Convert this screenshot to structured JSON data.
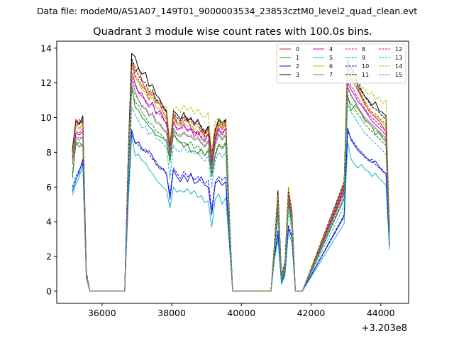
{
  "file_label": "Data file: modeM0/AS1A07_149T01_9000003534_23853cztM0_level2_quad_clean.evt",
  "chart_data": {
    "type": "line",
    "title": "Quadrant 3 module wise count rates with 100.0s bins.",
    "xlabel": "",
    "ylabel": "",
    "x_offset_label": "+3.203e8",
    "xlim": [
      34700,
      44800
    ],
    "ylim": [
      -0.7,
      14.4
    ],
    "xticks": [
      36000,
      38000,
      40000,
      42000,
      44000
    ],
    "xtick_labels": [
      "36000",
      "38000",
      "40000",
      "42000",
      "44000"
    ],
    "yticks": [
      0,
      2,
      4,
      6,
      8,
      10,
      12,
      14
    ],
    "ytick_labels": [
      "0",
      "2",
      "4",
      "6",
      "8",
      "10",
      "12",
      "14"
    ],
    "legend_position": "top-right",
    "x": [
      35150,
      35250,
      35350,
      35450,
      35550,
      35650,
      36650,
      36750,
      36850,
      36950,
      37050,
      37150,
      37250,
      37350,
      37450,
      37550,
      37650,
      37750,
      37850,
      37950,
      38050,
      38150,
      38250,
      38350,
      38450,
      38550,
      38650,
      38750,
      38850,
      38950,
      39050,
      39150,
      39250,
      39350,
      39450,
      39550,
      39650,
      39750,
      40850,
      40950,
      41050,
      41150,
      41250,
      41350,
      41450,
      41550,
      41650,
      41750,
      42950,
      43050,
      43150,
      43250,
      43350,
      43450,
      43550,
      43650,
      43750,
      43850,
      43950,
      44050,
      44150,
      44250
    ],
    "series": [
      {
        "name": "0",
        "color": "#d62020",
        "style": "solid",
        "values": [
          8.0,
          9.9,
          9.7,
          9.8,
          1.0,
          0.0,
          0.0,
          7.5,
          13.3,
          12.6,
          12.9,
          12.1,
          11.6,
          11.3,
          11.5,
          11.0,
          10.8,
          10.3,
          10.0,
          8.2,
          10.1,
          9.7,
          9.6,
          9.8,
          10.0,
          9.4,
          9.2,
          9.0,
          9.3,
          8.9,
          9.0,
          7.8,
          8.8,
          9.6,
          9.3,
          9.6,
          4.4,
          0.0,
          0.0,
          2.5,
          5.2,
          0.8,
          1.5,
          5.6,
          4.3,
          0.0,
          0.0,
          0.0,
          6.0,
          12.6,
          12.2,
          11.9,
          11.6,
          11.2,
          10.8,
          10.4,
          10.2,
          10.0,
          9.8,
          9.5,
          9.2,
          3.6
        ]
      },
      {
        "name": "1",
        "color": "#1e8a1e",
        "style": "solid",
        "values": [
          6.5,
          8.6,
          8.3,
          8.5,
          0.9,
          0.0,
          0.0,
          6.2,
          11.9,
          10.6,
          10.4,
          10.0,
          9.8,
          9.5,
          9.3,
          9.0,
          8.9,
          8.8,
          8.6,
          7.5,
          9.2,
          8.7,
          8.6,
          8.3,
          8.5,
          8.0,
          8.1,
          7.9,
          8.2,
          7.8,
          8.1,
          6.6,
          7.8,
          8.4,
          8.2,
          8.5,
          3.8,
          0.0,
          0.0,
          2.3,
          4.6,
          0.6,
          1.3,
          5.0,
          3.8,
          0.0,
          0.0,
          0.0,
          5.3,
          11.3,
          10.4,
          10.7,
          10.5,
          10.2,
          9.8,
          9.7,
          9.5,
          9.0,
          9.2,
          8.8,
          8.6,
          3.3
        ]
      },
      {
        "name": "2",
        "color": "#1111dd",
        "style": "solid",
        "values": [
          5.8,
          6.4,
          6.9,
          7.6,
          0.8,
          0.0,
          0.0,
          5.3,
          9.3,
          8.5,
          8.6,
          8.2,
          8.0,
          8.1,
          7.8,
          7.3,
          7.2,
          7.0,
          6.8,
          5.3,
          7.0,
          6.6,
          6.3,
          6.7,
          6.3,
          6.8,
          6.2,
          6.3,
          6.6,
          6.1,
          6.0,
          4.4,
          6.2,
          6.4,
          6.1,
          6.3,
          3.0,
          0.0,
          0.0,
          2.0,
          3.3,
          0.5,
          1.0,
          3.6,
          3.1,
          0.0,
          0.0,
          0.0,
          4.3,
          9.4,
          8.7,
          8.4,
          8.1,
          7.9,
          7.7,
          7.6,
          7.4,
          7.5,
          7.2,
          6.9,
          6.8,
          2.6
        ]
      },
      {
        "name": "3",
        "color": "#000000",
        "style": "solid",
        "values": [
          8.2,
          9.8,
          9.6,
          10.1,
          1.1,
          0.0,
          0.0,
          7.8,
          13.7,
          13.5,
          12.8,
          12.5,
          12.6,
          11.8,
          11.9,
          11.3,
          11.1,
          10.6,
          10.4,
          8.3,
          10.4,
          10.2,
          9.9,
          10.3,
          9.8,
          10.0,
          9.6,
          9.9,
          9.4,
          9.1,
          9.5,
          7.4,
          9.3,
          9.9,
          9.7,
          9.9,
          4.6,
          0.0,
          0.0,
          2.7,
          5.8,
          0.9,
          1.6,
          5.9,
          4.6,
          0.0,
          0.0,
          0.0,
          6.2,
          13.2,
          12.9,
          12.5,
          11.8,
          11.5,
          11.2,
          11.0,
          10.7,
          10.9,
          10.4,
          10.3,
          10.1,
          3.7
        ]
      },
      {
        "name": "4",
        "color": "#bb00bb",
        "style": "solid",
        "values": [
          7.6,
          9.1,
          9.0,
          9.2,
          1.0,
          0.0,
          0.0,
          7.1,
          12.6,
          12.0,
          11.4,
          11.4,
          10.9,
          10.6,
          10.9,
          10.2,
          10.4,
          10.0,
          9.6,
          8.0,
          9.8,
          9.3,
          9.4,
          9.6,
          9.2,
          9.4,
          8.9,
          9.2,
          8.8,
          8.6,
          9.1,
          7.2,
          8.7,
          9.3,
          9.0,
          9.4,
          4.3,
          0.0,
          0.0,
          2.5,
          5.0,
          0.7,
          1.5,
          5.4,
          4.2,
          0.0,
          0.0,
          0.0,
          5.8,
          12.0,
          11.6,
          11.3,
          10.9,
          10.7,
          10.4,
          10.1,
          9.8,
          9.6,
          9.4,
          9.2,
          9.0,
          3.5
        ]
      },
      {
        "name": "5",
        "color": "#17b3bd",
        "style": "solid",
        "values": [
          5.5,
          6.2,
          6.6,
          7.3,
          0.8,
          0.0,
          0.0,
          5.0,
          9.0,
          7.8,
          7.9,
          7.5,
          7.4,
          7.0,
          6.8,
          6.4,
          6.2,
          6.0,
          5.8,
          4.8,
          6.0,
          5.7,
          5.8,
          5.7,
          5.9,
          5.6,
          5.8,
          5.4,
          5.5,
          5.1,
          5.2,
          3.7,
          5.3,
          5.6,
          5.0,
          5.4,
          2.8,
          0.0,
          0.0,
          1.8,
          3.0,
          0.4,
          0.9,
          3.4,
          2.8,
          0.0,
          0.0,
          0.0,
          3.9,
          8.6,
          7.6,
          7.3,
          7.1,
          7.3,
          7.0,
          6.9,
          6.6,
          6.8,
          6.5,
          6.3,
          6.1,
          2.4
        ]
      },
      {
        "name": "6",
        "color": "#b8b800",
        "style": "solid",
        "values": [
          7.8,
          9.6,
          9.4,
          9.6,
          1.0,
          0.0,
          0.0,
          7.4,
          13.0,
          12.3,
          12.0,
          11.6,
          11.4,
          11.0,
          11.2,
          10.6,
          10.5,
          10.1,
          9.9,
          8.1,
          10.0,
          9.6,
          9.5,
          9.7,
          9.5,
          9.6,
          9.3,
          9.5,
          9.1,
          8.8,
          9.3,
          7.6,
          9.0,
          9.7,
          9.4,
          9.7,
          4.5,
          0.0,
          0.0,
          2.6,
          5.4,
          0.8,
          1.6,
          5.7,
          4.4,
          0.0,
          0.0,
          0.0,
          6.1,
          12.8,
          12.3,
          11.9,
          11.5,
          11.1,
          10.7,
          10.5,
          10.2,
          10.1,
          9.9,
          9.7,
          9.4,
          3.6
        ]
      },
      {
        "name": "7",
        "color": "#7a7a7a",
        "style": "solid",
        "values": [
          7.4,
          8.9,
          8.7,
          8.9,
          0.9,
          0.0,
          0.0,
          6.8,
          12.2,
          11.5,
          11.0,
          10.6,
          10.5,
          10.1,
          10.2,
          9.7,
          9.6,
          9.3,
          9.1,
          7.7,
          9.4,
          9.0,
          8.9,
          9.1,
          8.9,
          8.9,
          8.7,
          8.8,
          8.5,
          8.3,
          8.6,
          7.0,
          8.4,
          9.0,
          8.7,
          9.0,
          4.1,
          0.0,
          0.0,
          2.4,
          4.9,
          0.7,
          1.4,
          5.3,
          4.0,
          0.0,
          0.0,
          0.0,
          5.6,
          11.8,
          11.3,
          11.0,
          10.6,
          10.3,
          10.0,
          9.8,
          9.6,
          9.4,
          9.2,
          9.0,
          8.8,
          3.4
        ]
      },
      {
        "name": "8",
        "color": "#d62020",
        "style": "dashed",
        "values": [
          8.0,
          9.7,
          9.9,
          9.5,
          1.0,
          0.0,
          0.0,
          7.6,
          13.2,
          12.4,
          12.2,
          11.8,
          11.6,
          11.1,
          11.4,
          10.8,
          10.9,
          10.5,
          10.3,
          8.4,
          10.2,
          9.8,
          9.7,
          10.0,
          9.7,
          9.8,
          9.5,
          9.7,
          9.2,
          9.0,
          9.4,
          7.7,
          9.2,
          9.8,
          9.5,
          9.8,
          4.5,
          0.0,
          0.0,
          2.7,
          5.5,
          0.8,
          1.6,
          5.8,
          4.5,
          0.0,
          0.0,
          0.0,
          6.1,
          13.0,
          12.5,
          12.1,
          11.7,
          11.3,
          10.9,
          10.6,
          10.3,
          10.2,
          10.0,
          9.8,
          9.6,
          3.7
        ]
      },
      {
        "name": "9",
        "color": "#1e8a1e",
        "style": "dashed",
        "values": [
          6.8,
          8.4,
          8.6,
          8.3,
          0.9,
          0.0,
          0.0,
          6.4,
          11.6,
          10.9,
          10.7,
          10.3,
          10.0,
          9.7,
          9.6,
          9.2,
          9.1,
          8.9,
          8.7,
          7.4,
          9.0,
          8.8,
          8.5,
          8.6,
          8.4,
          8.6,
          8.2,
          8.4,
          8.0,
          7.8,
          8.2,
          6.8,
          7.9,
          8.5,
          8.3,
          8.6,
          3.9,
          0.0,
          0.0,
          2.3,
          4.7,
          0.6,
          1.4,
          5.1,
          3.9,
          0.0,
          0.0,
          0.0,
          5.4,
          11.1,
          10.8,
          10.5,
          10.2,
          9.9,
          9.6,
          9.4,
          9.2,
          9.0,
          8.8,
          8.6,
          8.4,
          3.3
        ]
      },
      {
        "name": "10",
        "color": "#1111dd",
        "style": "dashed",
        "values": [
          6.0,
          6.6,
          7.0,
          7.4,
          0.8,
          0.0,
          0.0,
          5.5,
          9.1,
          8.6,
          8.4,
          8.1,
          8.2,
          7.9,
          7.6,
          7.5,
          7.0,
          7.1,
          6.7,
          5.6,
          7.1,
          6.8,
          6.5,
          6.9,
          6.6,
          6.7,
          6.4,
          6.6,
          6.3,
          6.2,
          6.4,
          4.7,
          6.3,
          6.6,
          6.4,
          6.6,
          3.1,
          0.0,
          0.0,
          2.0,
          3.5,
          0.5,
          1.1,
          3.8,
          3.2,
          0.0,
          0.0,
          0.0,
          4.4,
          9.2,
          8.8,
          8.5,
          8.2,
          8.0,
          7.8,
          7.5,
          7.6,
          7.3,
          7.1,
          7.0,
          6.7,
          2.7
        ]
      },
      {
        "name": "11",
        "color": "#000000",
        "style": "dashed",
        "values": [
          8.1,
          9.5,
          9.7,
          9.9,
          1.0,
          0.0,
          0.0,
          7.7,
          13.4,
          12.9,
          12.4,
          12.1,
          12.0,
          11.5,
          11.6,
          11.0,
          11.0,
          10.7,
          10.3,
          8.5,
          10.3,
          10.0,
          9.8,
          10.1,
          9.9,
          9.9,
          9.7,
          9.8,
          9.5,
          9.2,
          9.5,
          7.9,
          9.3,
          9.9,
          9.6,
          9.9,
          4.6,
          0.0,
          0.0,
          2.8,
          5.6,
          0.9,
          1.7,
          5.9,
          4.6,
          0.0,
          0.0,
          0.0,
          6.3,
          13.4,
          12.8,
          12.4,
          12.0,
          11.6,
          11.2,
          10.9,
          10.6,
          10.5,
          10.3,
          10.1,
          9.9,
          3.8
        ]
      },
      {
        "name": "12",
        "color": "#bb00bb",
        "style": "dashed",
        "values": [
          7.7,
          9.2,
          9.1,
          9.4,
          1.0,
          0.0,
          0.0,
          7.2,
          12.4,
          11.8,
          11.5,
          11.2,
          11.0,
          10.7,
          10.8,
          10.3,
          10.2,
          9.9,
          9.7,
          8.0,
          9.7,
          9.4,
          9.3,
          9.5,
          9.3,
          9.3,
          9.1,
          9.2,
          8.9,
          8.7,
          9.0,
          7.4,
          8.8,
          9.4,
          9.1,
          9.4,
          4.3,
          0.0,
          0.0,
          2.5,
          5.2,
          0.7,
          1.5,
          5.5,
          4.3,
          0.0,
          0.0,
          0.0,
          5.9,
          12.3,
          11.8,
          11.5,
          11.1,
          10.8,
          10.5,
          10.2,
          10.0,
          9.8,
          9.6,
          9.4,
          9.2,
          3.5
        ]
      },
      {
        "name": "13",
        "color": "#17b3bd",
        "style": "dashed",
        "values": [
          5.7,
          6.4,
          6.8,
          7.1,
          0.8,
          0.0,
          0.0,
          5.2,
          10.6,
          10.2,
          9.8,
          9.4,
          9.5,
          9.0,
          9.2,
          8.8,
          8.7,
          8.5,
          8.3,
          6.5,
          8.4,
          8.1,
          8.0,
          8.3,
          8.0,
          8.1,
          7.9,
          8.0,
          7.7,
          7.5,
          7.8,
          6.0,
          7.5,
          8.0,
          7.7,
          8.0,
          3.4,
          0.0,
          0.0,
          2.1,
          4.2,
          0.5,
          1.2,
          4.6,
          3.5,
          0.0,
          0.0,
          0.0,
          4.9,
          10.8,
          10.3,
          10.0,
          9.7,
          9.4,
          9.1,
          8.9,
          8.7,
          8.5,
          8.3,
          8.1,
          7.9,
          3.0
        ]
      },
      {
        "name": "14",
        "color": "#b8b800",
        "style": "dashed",
        "values": [
          7.9,
          9.5,
          9.3,
          9.7,
          1.0,
          0.0,
          0.0,
          7.6,
          12.5,
          12.3,
          12.1,
          11.7,
          11.8,
          11.4,
          11.5,
          10.9,
          10.8,
          10.7,
          10.6,
          8.6,
          10.5,
          10.6,
          10.3,
          10.7,
          10.4,
          10.6,
          10.2,
          10.5,
          10.1,
          10.0,
          10.3,
          7.9,
          9.8,
          10.0,
          9.7,
          9.6,
          4.6,
          0.0,
          0.0,
          2.8,
          5.5,
          0.8,
          1.6,
          6.0,
          4.5,
          0.0,
          0.0,
          0.0,
          6.2,
          12.8,
          12.6,
          12.4,
          12.1,
          11.8,
          11.6,
          11.3,
          11.5,
          11.0,
          11.2,
          10.8,
          11.0,
          3.8
        ]
      },
      {
        "name": "15",
        "color": "#7a7a7a",
        "style": "dashed",
        "values": [
          7.3,
          8.7,
          8.9,
          8.8,
          0.9,
          0.0,
          0.0,
          6.9,
          11.8,
          11.3,
          11.0,
          10.7,
          10.6,
          10.2,
          10.3,
          9.8,
          9.7,
          9.4,
          9.2,
          7.8,
          9.3,
          9.1,
          9.0,
          9.2,
          9.0,
          9.0,
          8.8,
          8.9,
          8.6,
          8.4,
          8.7,
          7.1,
          8.5,
          9.1,
          8.8,
          9.1,
          4.2,
          0.0,
          0.0,
          2.4,
          5.0,
          0.7,
          1.4,
          5.3,
          4.1,
          0.0,
          0.0,
          0.0,
          5.7,
          11.7,
          11.2,
          10.9,
          10.5,
          10.2,
          9.9,
          9.7,
          9.5,
          9.3,
          9.1,
          8.9,
          8.7,
          3.4
        ]
      }
    ]
  }
}
